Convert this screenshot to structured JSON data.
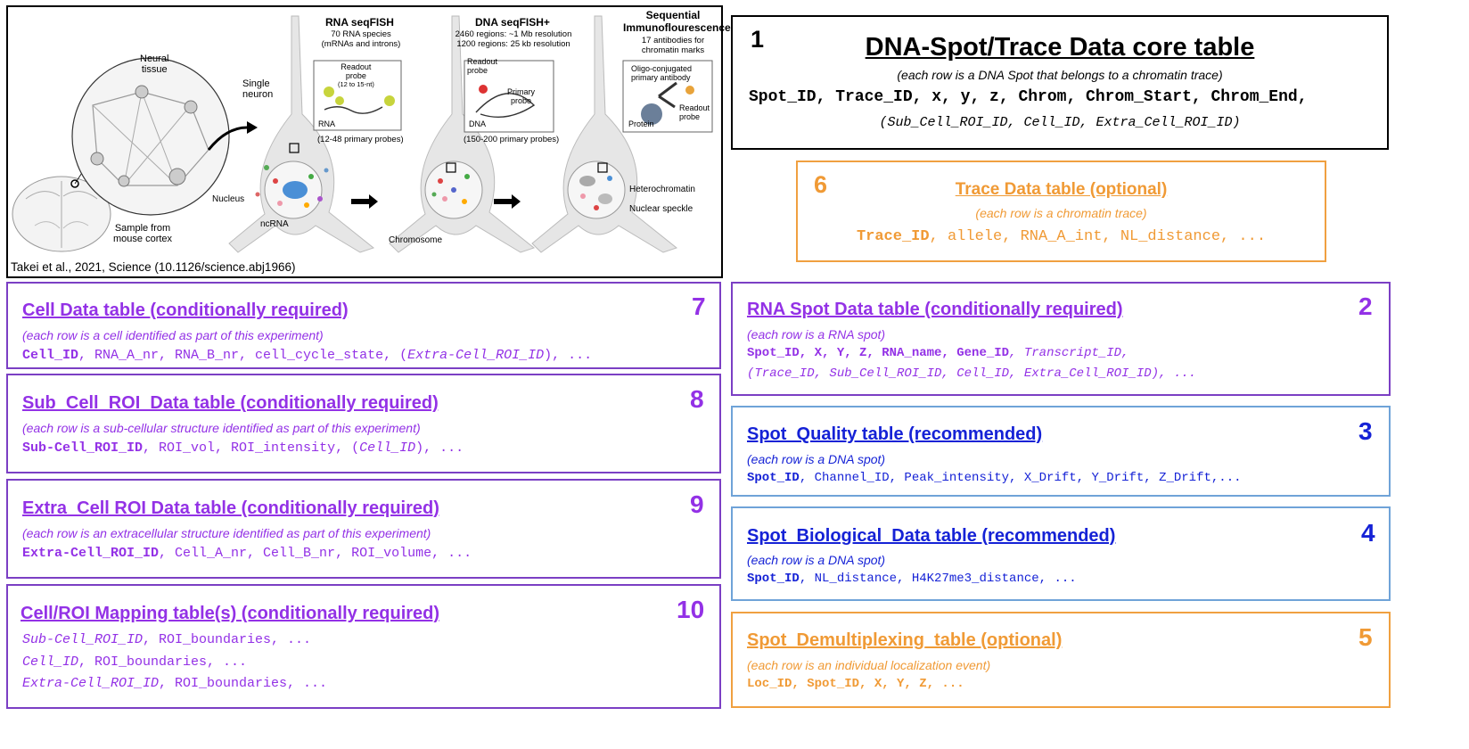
{
  "figure": {
    "caption": "Takei et al., 2021, Science (10.1126/science.abj1966)",
    "labels": {
      "neural_tissue": [
        "Neural",
        "tissue"
      ],
      "single_neuron": [
        "Single",
        "neuron"
      ],
      "sample": [
        "Sample from",
        "mouse cortex"
      ],
      "nucleus": "Nucleus",
      "ncrna": "ncRNA",
      "chromosome": "Chromosome",
      "heterochromatin": "Heterochromatin",
      "nuclear_speckle": "Nuclear speckle",
      "rna_title": "RNA seqFISH",
      "rna_sub": [
        "70 RNA species",
        "(mRNAs and introns)"
      ],
      "rna_probe": [
        "Readout",
        "probe",
        "(12 to 15-nt)"
      ],
      "rna_label": "RNA",
      "rna_primary": "(12-48 primary probes)",
      "dna_title": "DNA seqFISH+",
      "dna_sub": [
        "2460 regions: ~1 Mb resolution",
        "1200 regions: 25 kb resolution"
      ],
      "dna_probe": [
        "Readout",
        "probe"
      ],
      "dna_primary_probe": [
        "Primary",
        "probe"
      ],
      "dna_label": "DNA",
      "dna_primary": "(150-200 primary probes)",
      "if_title": [
        "Sequential",
        "Immunoflourescence"
      ],
      "if_sub": [
        "17 antibodies for",
        "chromatin marks"
      ],
      "if_antibody": [
        "Oligo-conjugated",
        "primary antibody"
      ],
      "if_protein": "Protein",
      "if_readout": [
        "Readout",
        "probe"
      ]
    }
  },
  "tables": {
    "t1": {
      "number": "1",
      "title": "DNA-Spot/Trace Data core table",
      "subtitle": "(each row is a DNA Spot that belongs to a chromatin trace)",
      "fields": "Spot_ID, Trace_ID, x, y, z, Chrom, Chrom_Start, Chrom_End,",
      "optional_fields": "(Sub_Cell_ROI_ID, Cell_ID, Extra_Cell_ROI_ID)"
    },
    "t6": {
      "number": "6",
      "title": "Trace Data table (optional)",
      "subtitle": "(each row is a chromatin trace)",
      "key": "Trace_ID",
      "rest": ", allele, RNA_A_int, NL_distance, ..."
    },
    "t7": {
      "number": "7",
      "title": "Cell Data table (conditionally required)",
      "subtitle": "(each row is a cell identified as part of this experiment)",
      "key": "Cell_ID",
      "rest1": ", RNA_A_nr, RNA_B_nr, cell_cycle_state, (",
      "ital": "Extra-Cell_ROI_ID",
      "rest2": "), ..."
    },
    "t8": {
      "number": "8",
      "title": "Sub_Cell_ROI_Data table (conditionally required)",
      "subtitle": "(each row is a sub-cellular structure identified as part of this experiment)",
      "key": "Sub-Cell_ROI_ID",
      "rest1": ", ROI_vol, ROI_intensity, (",
      "ital": "Cell_ID",
      "rest2": "), ..."
    },
    "t9": {
      "number": "9",
      "title": "Extra_Cell ROI Data table (conditionally required)",
      "subtitle": "(each row is an extracellular structure identified as part of this experiment)",
      "key": "Extra-Cell_ROI_ID",
      "rest": ", Cell_A_nr, Cell_B_nr, ROI_volume, ..."
    },
    "t10": {
      "number": "10",
      "title": "Cell/ROI Mapping table(s) (conditionally required)",
      "rows": [
        {
          "ital": "Sub-Cell_ROI_ID",
          "rest": ", ROI_boundaries, ..."
        },
        {
          "ital": "Cell_ID",
          "rest": ", ROI_boundaries, ..."
        },
        {
          "ital": "Extra-Cell_ROI_ID",
          "rest": ", ROI_boundaries, ..."
        }
      ]
    },
    "t2": {
      "number": "2",
      "title": "RNA Spot Data table (conditionally required)",
      "subtitle": "(each row is a RNA spot)",
      "bold": "Spot_ID, X, Y, Z, RNA_name, Gene_ID",
      "ital1": ", Transcript_ID,",
      "ital2": "(Trace_ID, Sub_Cell_ROI_ID, Cell_ID, Extra_Cell_ROI_ID), ..."
    },
    "t3": {
      "number": "3",
      "title": "Spot_Quality table (recommended)",
      "subtitle": "(each row is a DNA spot)",
      "key": "Spot_ID",
      "rest": ", Channel_ID, Peak_intensity, X_Drift, Y_Drift, Z_Drift,..."
    },
    "t4": {
      "number": "4",
      "title": "Spot_Biological_Data table (recommended)",
      "subtitle": "(each row is a DNA spot)",
      "key": "Spot_ID",
      "rest": ", NL_distance, H4K27me3_distance, ..."
    },
    "t5": {
      "number": "5",
      "title": "Spot_Demultiplexing_table (optional)",
      "subtitle": "(each row is an individual localization event)",
      "fields": "Loc_ID, Spot_ID, X, Y, Z, ..."
    }
  },
  "colors": {
    "purple": "#9331e6",
    "blue": "#1522d6",
    "orange": "#f09a35"
  }
}
